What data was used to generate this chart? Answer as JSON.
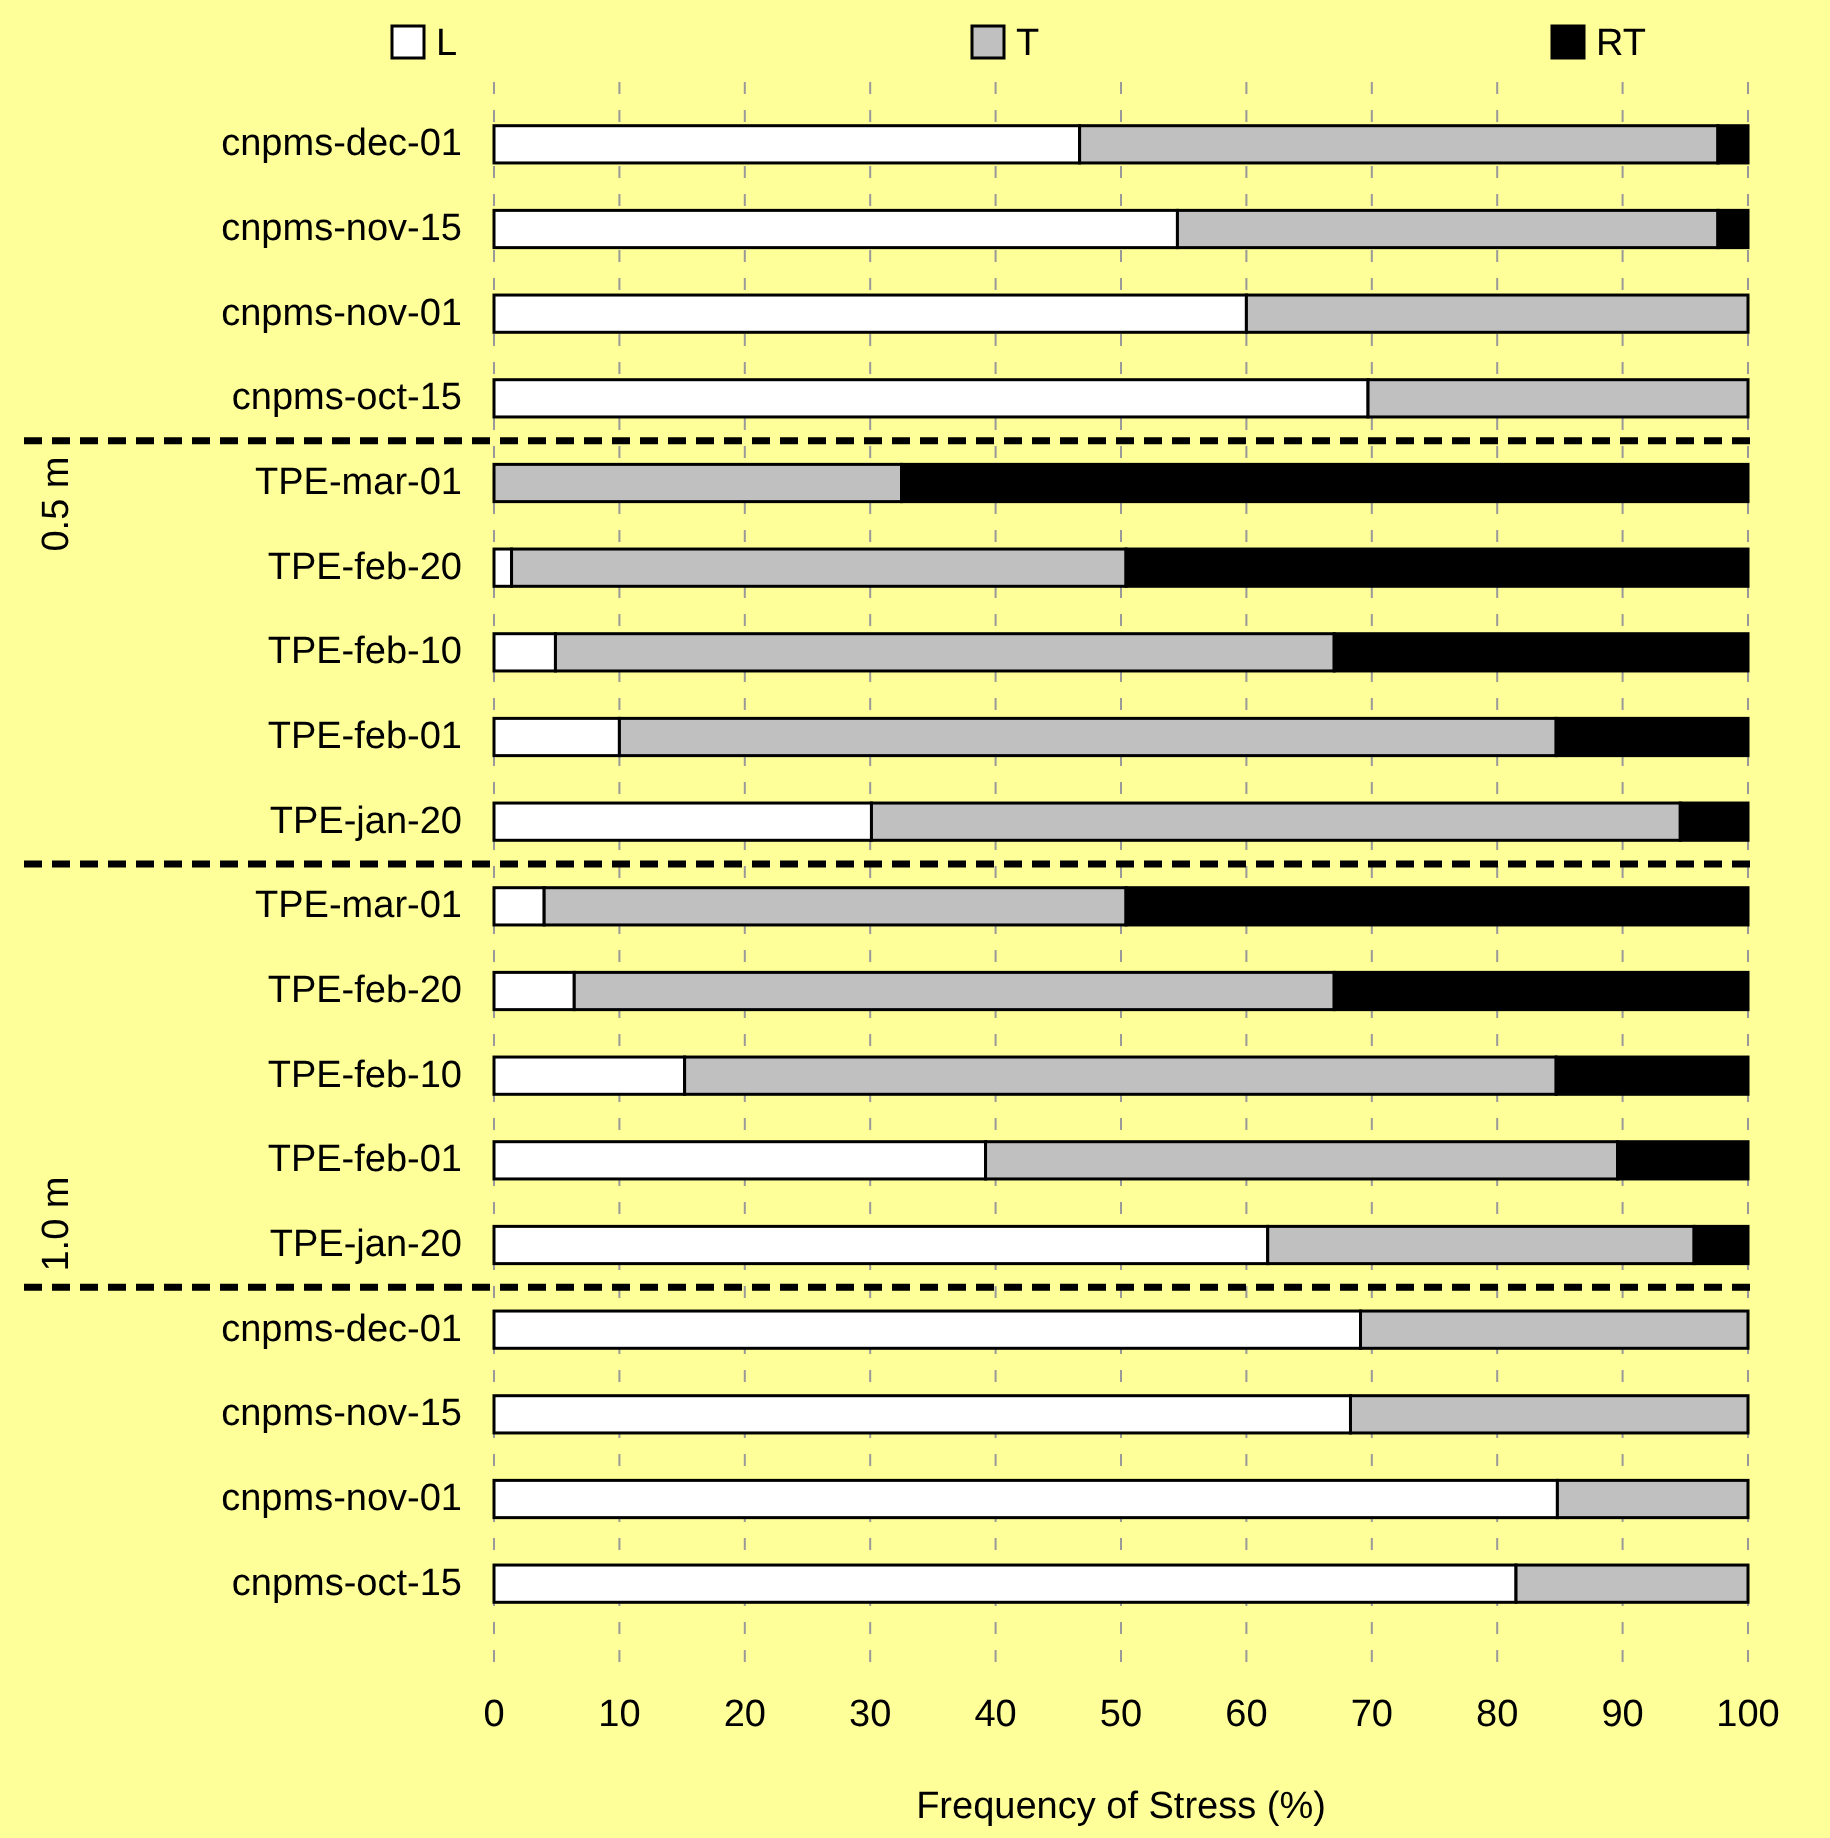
{
  "chart_data": {
    "type": "bar",
    "orientation": "horizontal",
    "stacked": true,
    "xlabel": "Frequency of Stress (%)",
    "categories": [
      "cnpms-dec-01",
      "cnpms-nov-15",
      "cnpms-nov-01",
      "cnpms-oct-15",
      "TPE-mar-01",
      "TPE-feb-20",
      "TPE-feb-10",
      "TPE-feb-01",
      "TPE-jan-20",
      "TPE-mar-01",
      "TPE-feb-20",
      "TPE-feb-10",
      "TPE-feb-01",
      "TPE-jan-20",
      "cnpms-dec-01",
      "cnpms-nov-15",
      "cnpms-nov-01",
      "cnpms-oct-15"
    ],
    "series": [
      {
        "name": "L",
        "color": "#ffffff",
        "values": [
          46.7,
          54.5,
          60.0,
          69.7,
          0,
          1.4,
          4.9,
          10.0,
          30.1,
          4.0,
          6.4,
          15.2,
          39.2,
          61.7,
          69.1,
          68.3,
          84.8,
          81.5
        ]
      },
      {
        "name": "T",
        "color": "#c0c0c0",
        "values": [
          50.9,
          43.1,
          40.0,
          30.3,
          32.5,
          49.0,
          62.1,
          74.7,
          64.5,
          46.4,
          60.6,
          69.5,
          50.4,
          34.0,
          30.9,
          31.7,
          15.2,
          18.5
        ]
      },
      {
        "name": "RT",
        "color": "#000000",
        "values": [
          2.4,
          2.4,
          0,
          0,
          67.5,
          49.6,
          33.0,
          15.3,
          5.4,
          49.6,
          33.0,
          15.3,
          10.4,
          4.3,
          0,
          0,
          0,
          0
        ]
      }
    ],
    "xlim": [
      0,
      100
    ],
    "xticks": [
      0,
      10,
      20,
      30,
      40,
      50,
      60,
      70,
      80,
      90,
      100
    ],
    "grid": "x",
    "legend": "top",
    "annotations": [
      "0.5 m",
      "1.0 m"
    ]
  }
}
